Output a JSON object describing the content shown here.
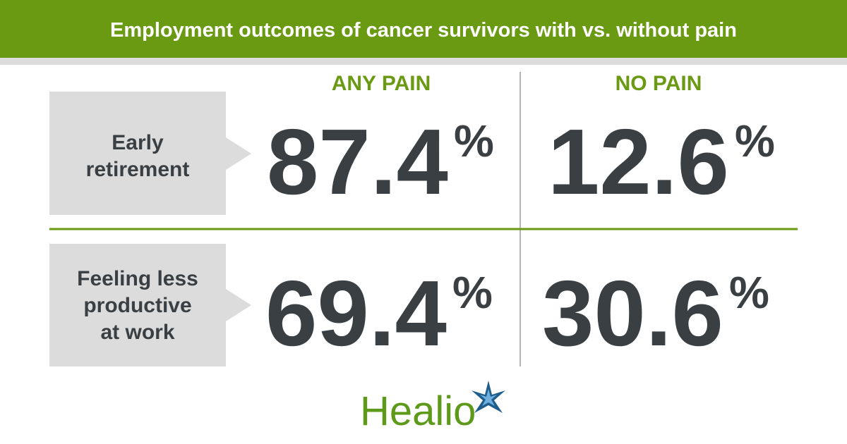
{
  "header": {
    "title": "Employment outcomes of cancer survivors with vs. without pain"
  },
  "table": {
    "columns": [
      "ANY PAIN",
      "NO PAIN"
    ],
    "unit": "%",
    "rows": [
      {
        "label": [
          "Early",
          "retirement"
        ],
        "values": [
          "87.4",
          "12.6"
        ]
      },
      {
        "label": [
          "Feeling less",
          "productive",
          "at work"
        ],
        "values": [
          "69.4",
          "30.6"
        ]
      }
    ]
  },
  "logo": {
    "text": "Healio"
  }
}
